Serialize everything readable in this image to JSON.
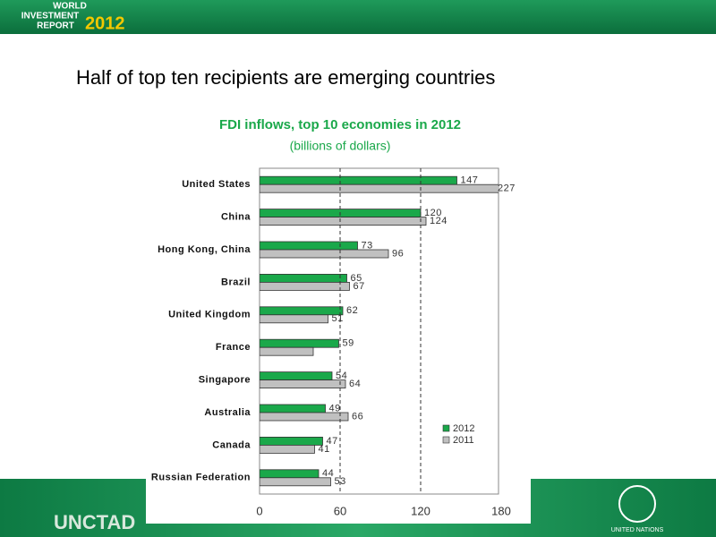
{
  "header": {
    "line1": "WORLD",
    "line2": "INVESTMENT",
    "line3": "REPORT",
    "year": "2012"
  },
  "slide_title": "Half of top ten recipients are emerging countries",
  "chart_data": {
    "type": "bar",
    "orientation": "horizontal",
    "title": "FDI inflows, top 10 economies in 2012",
    "subtitle": "(billions  of dollars)",
    "categories": [
      "United States",
      "China",
      "Hong Kong, China",
      "Brazil",
      "United Kingdom",
      "France",
      "Singapore",
      "Australia",
      "Canada",
      "Russian Federation"
    ],
    "series": [
      {
        "name": "2012",
        "color": "#1aa84a",
        "values": [
          147,
          120,
          73,
          65,
          62,
          59,
          54,
          49,
          47,
          44
        ]
      },
      {
        "name": "2011",
        "color": "#c0c0c0",
        "values": [
          227,
          124,
          96,
          67,
          51,
          40,
          64,
          66,
          41,
          53
        ],
        "value_labels": [
          "227",
          "124",
          "96",
          "67",
          "51",
          null,
          "64",
          "66",
          "41",
          "53"
        ]
      }
    ],
    "xlim": [
      0,
      180
    ],
    "xticks": [
      0,
      60,
      120,
      180
    ],
    "grid": true,
    "grid_style": "dashed",
    "legend": "lower right"
  },
  "footer": {
    "org": "UNCTAD",
    "un": "UNITED NATIONS"
  }
}
